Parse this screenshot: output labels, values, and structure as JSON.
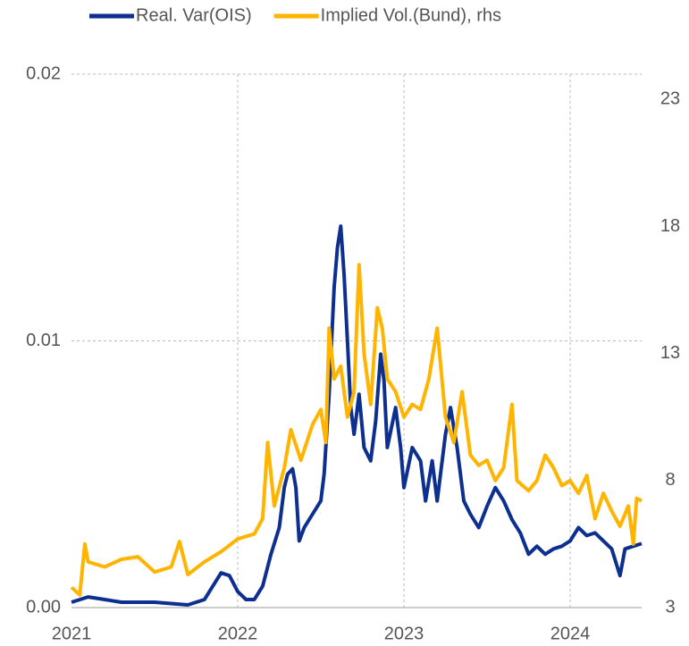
{
  "chart_data": {
    "type": "line",
    "xlim": [
      2021,
      2024.43
    ],
    "xticks": [
      2021,
      2022,
      2023,
      2024
    ],
    "ylim": [
      0,
      0.02
    ],
    "yticks": [
      {
        "value": 0,
        "label": "0.00"
      },
      0.01,
      0.02
    ],
    "y2lim": [
      3,
      24
    ],
    "y2ticks": [
      3,
      8,
      13,
      18,
      23
    ],
    "grid": true,
    "legend": "top",
    "series": [
      {
        "name": "Real. Var(OIS)",
        "color": "#0d2f8f",
        "x": [
          2021.0,
          2021.1,
          2021.2,
          2021.3,
          2021.5,
          2021.7,
          2021.8,
          2021.85,
          2021.9,
          2021.95,
          2022.0,
          2022.05,
          2022.1,
          2022.15,
          2022.2,
          2022.25,
          2022.28,
          2022.3,
          2022.33,
          2022.35,
          2022.37,
          2022.4,
          2022.45,
          2022.5,
          2022.52,
          2022.55,
          2022.58,
          2022.6,
          2022.62,
          2022.64,
          2022.66,
          2022.68,
          2022.7,
          2022.73,
          2022.76,
          2022.8,
          2022.83,
          2022.86,
          2022.88,
          2022.9,
          2022.95,
          2022.98,
          2023.0,
          2023.05,
          2023.1,
          2023.13,
          2023.17,
          2023.2,
          2023.25,
          2023.28,
          2023.32,
          2023.36,
          2023.4,
          2023.45,
          2023.5,
          2023.55,
          2023.6,
          2023.65,
          2023.7,
          2023.75,
          2023.8,
          2023.85,
          2023.9,
          2023.95,
          2024.0,
          2024.05,
          2024.1,
          2024.15,
          2024.2,
          2024.25,
          2024.3,
          2024.33,
          2024.38,
          2024.43
        ],
        "values": [
          0.0002,
          0.0004,
          0.0003,
          0.0002,
          0.0002,
          0.0001,
          0.0003,
          0.0008,
          0.0013,
          0.0012,
          0.0006,
          0.0003,
          0.0003,
          0.0008,
          0.002,
          0.003,
          0.0045,
          0.005,
          0.0052,
          0.0045,
          0.0025,
          0.003,
          0.0035,
          0.004,
          0.005,
          0.008,
          0.012,
          0.0135,
          0.0143,
          0.0125,
          0.01,
          0.0075,
          0.0065,
          0.008,
          0.006,
          0.0055,
          0.007,
          0.0095,
          0.0085,
          0.006,
          0.0075,
          0.006,
          0.0045,
          0.006,
          0.0055,
          0.004,
          0.0055,
          0.004,
          0.0065,
          0.0075,
          0.006,
          0.004,
          0.0035,
          0.003,
          0.0038,
          0.0045,
          0.004,
          0.0033,
          0.0028,
          0.002,
          0.0023,
          0.002,
          0.0022,
          0.0023,
          0.0025,
          0.003,
          0.0027,
          0.0028,
          0.0025,
          0.0022,
          0.0012,
          0.0022,
          0.0023,
          0.0024
        ]
      },
      {
        "name": "Implied Vol.(Bund), rhs",
        "color": "#ffb400",
        "axis": "y2",
        "x": [
          2021.0,
          2021.05,
          2021.08,
          2021.1,
          2021.2,
          2021.3,
          2021.4,
          2021.5,
          2021.6,
          2021.65,
          2021.7,
          2021.8,
          2021.9,
          2022.0,
          2022.1,
          2022.15,
          2022.18,
          2022.22,
          2022.28,
          2022.32,
          2022.38,
          2022.45,
          2022.5,
          2022.53,
          2022.55,
          2022.58,
          2022.62,
          2022.66,
          2022.7,
          2022.73,
          2022.76,
          2022.8,
          2022.84,
          2022.87,
          2022.9,
          2022.95,
          2023.0,
          2023.05,
          2023.1,
          2023.15,
          2023.2,
          2023.25,
          2023.3,
          2023.35,
          2023.4,
          2023.45,
          2023.5,
          2023.55,
          2023.6,
          2023.65,
          2023.68,
          2023.75,
          2023.8,
          2023.85,
          2023.9,
          2023.95,
          2024.0,
          2024.05,
          2024.1,
          2024.15,
          2024.2,
          2024.25,
          2024.3,
          2024.35,
          2024.38,
          2024.4,
          2024.43
        ],
        "values": [
          3.8,
          3.5,
          5.5,
          4.8,
          4.6,
          4.9,
          5.0,
          4.4,
          4.6,
          5.6,
          4.3,
          4.8,
          5.2,
          5.7,
          5.9,
          6.5,
          9.5,
          7.0,
          8.5,
          10.0,
          8.8,
          10.2,
          10.8,
          9.5,
          14.0,
          12.0,
          12.5,
          10.5,
          11.5,
          16.5,
          13.0,
          11.0,
          14.8,
          14.0,
          12.0,
          11.5,
          10.5,
          11.0,
          10.8,
          12.0,
          14.0,
          10.5,
          9.5,
          11.5,
          9.0,
          8.6,
          8.8,
          8.0,
          8.5,
          11.0,
          8.0,
          7.6,
          8.0,
          9.0,
          8.5,
          7.8,
          8.0,
          7.5,
          8.2,
          6.5,
          7.5,
          6.8,
          6.2,
          7.0,
          5.5,
          7.3,
          7.2
        ]
      }
    ]
  }
}
